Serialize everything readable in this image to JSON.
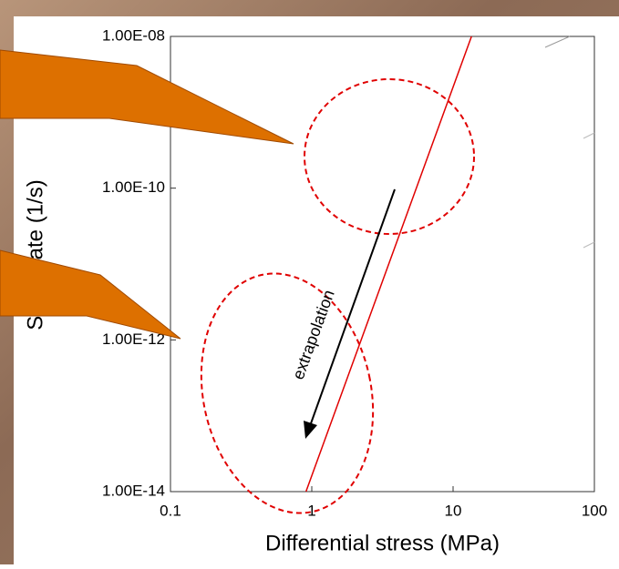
{
  "chart_data": {
    "type": "line",
    "xlabel": "Differential stress (MPa)",
    "ylabel": "Strain rate (1/s)",
    "xscale": "log",
    "yscale": "log",
    "xlim": [
      0.1,
      100
    ],
    "xticks": [
      0.1,
      1,
      10,
      100
    ],
    "ylim": [
      1e-14,
      1e-08
    ],
    "yticks": [
      {
        "value": 1e-14,
        "label": "1.00E-14"
      },
      {
        "value": 1e-12,
        "label": "1.00E-12"
      },
      {
        "value": 1e-10,
        "label": "1.00E-10"
      },
      {
        "value": 1e-08,
        "label": "1.00E-08"
      }
    ],
    "series": [
      {
        "color": "#e00000",
        "x": [
          0.91,
          13.5
        ],
        "values": [
          1e-14,
          1e-08
        ]
      }
    ],
    "annotation": "extrapolation"
  }
}
